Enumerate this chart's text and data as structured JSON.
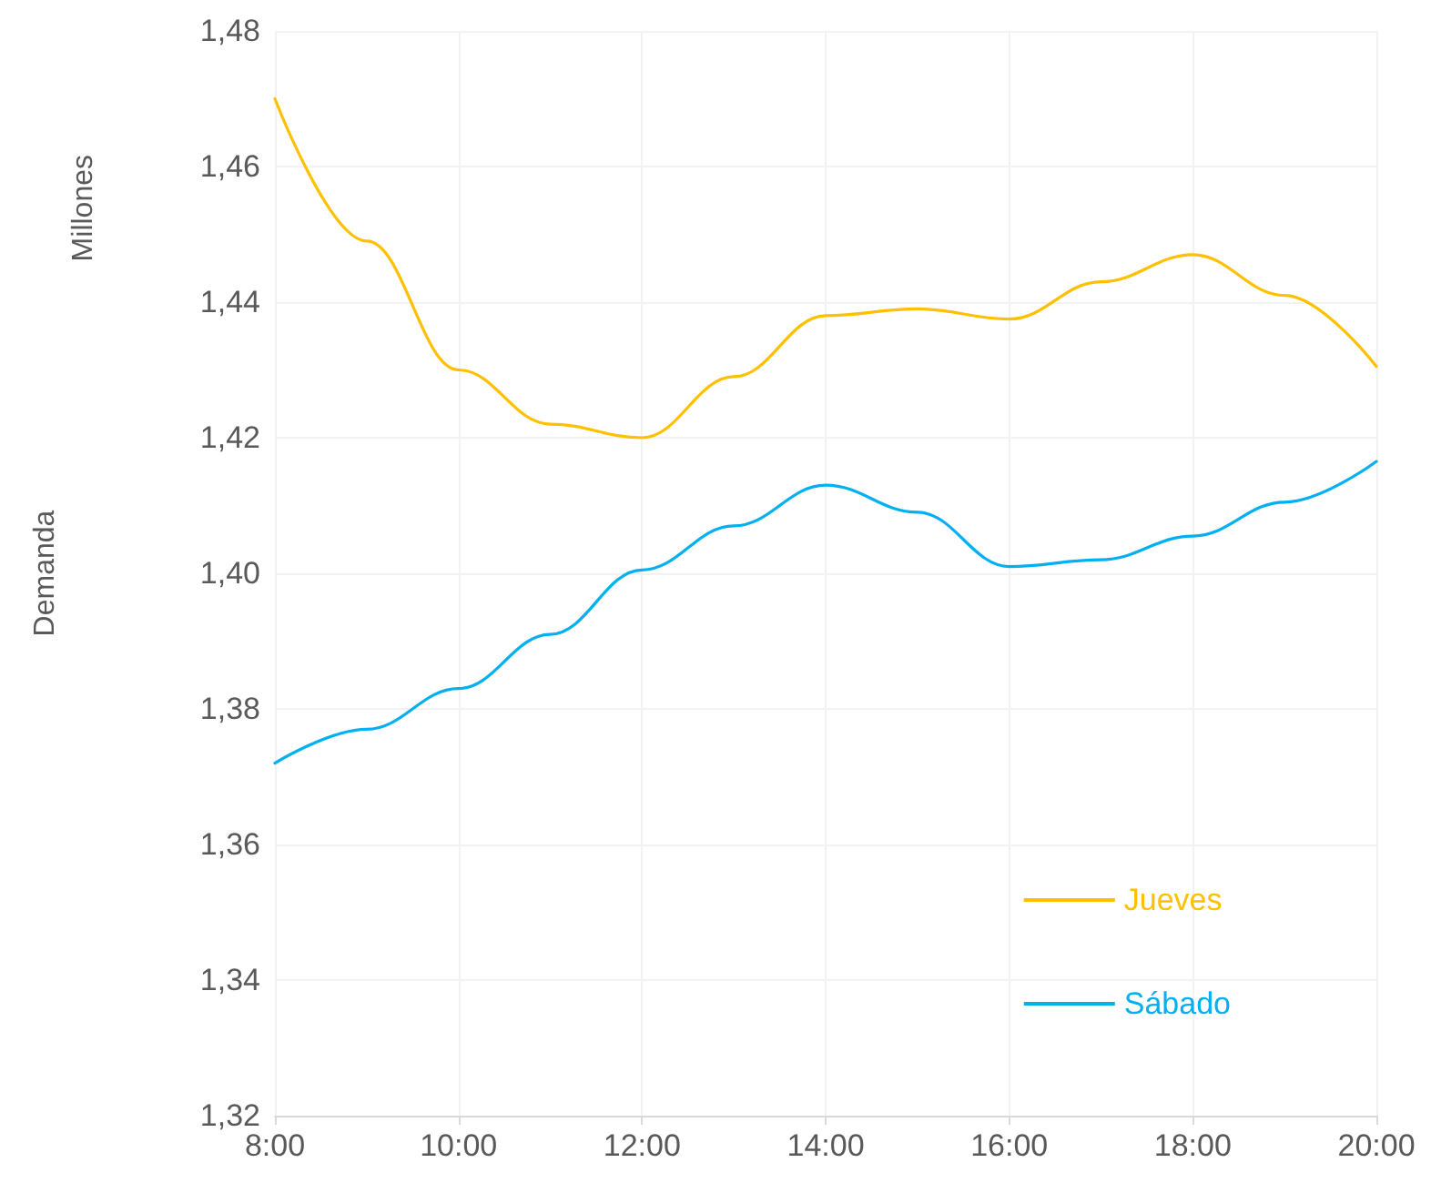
{
  "chart_data": {
    "type": "line",
    "ylabel": "Demanda",
    "annotations": [
      "Millones"
    ],
    "x": [
      8,
      9,
      10,
      11,
      12,
      13,
      14,
      15,
      16,
      17,
      18,
      19,
      20
    ],
    "series": [
      {
        "name": "Jueves",
        "color": "#ffc000",
        "values": [
          1.47,
          1.449,
          1.43,
          1.422,
          1.42,
          1.429,
          1.438,
          1.439,
          1.4375,
          1.443,
          1.447,
          1.441,
          1.4305
        ]
      },
      {
        "name": "Sábado",
        "color": "#00b0f0",
        "values": [
          1.372,
          1.377,
          1.383,
          1.391,
          1.4005,
          1.407,
          1.413,
          1.409,
          1.401,
          1.402,
          1.4055,
          1.4105,
          1.4165
        ]
      }
    ],
    "xlim": [
      8,
      20
    ],
    "xticks": [
      {
        "value": 8,
        "label": "8:00"
      },
      {
        "value": 10,
        "label": "10:00"
      },
      {
        "value": 12,
        "label": "12:00"
      },
      {
        "value": 14,
        "label": "14:00"
      },
      {
        "value": 16,
        "label": "16:00"
      },
      {
        "value": 18,
        "label": "18:00"
      },
      {
        "value": 20,
        "label": "20:00"
      }
    ],
    "ylim": [
      1.32,
      1.48
    ],
    "yticks": [
      {
        "value": 1.32,
        "label": "1,32"
      },
      {
        "value": 1.34,
        "label": "1,34"
      },
      {
        "value": 1.36,
        "label": "1,36"
      },
      {
        "value": 1.38,
        "label": "1,38"
      },
      {
        "value": 1.4,
        "label": "1,40"
      },
      {
        "value": 1.42,
        "label": "1,42"
      },
      {
        "value": 1.44,
        "label": "1,44"
      },
      {
        "value": 1.46,
        "label": "1,46"
      },
      {
        "value": 1.48,
        "label": "1,48"
      }
    ],
    "grid": true,
    "legend": "bottom right",
    "marker": "none",
    "line_style": "solid"
  }
}
